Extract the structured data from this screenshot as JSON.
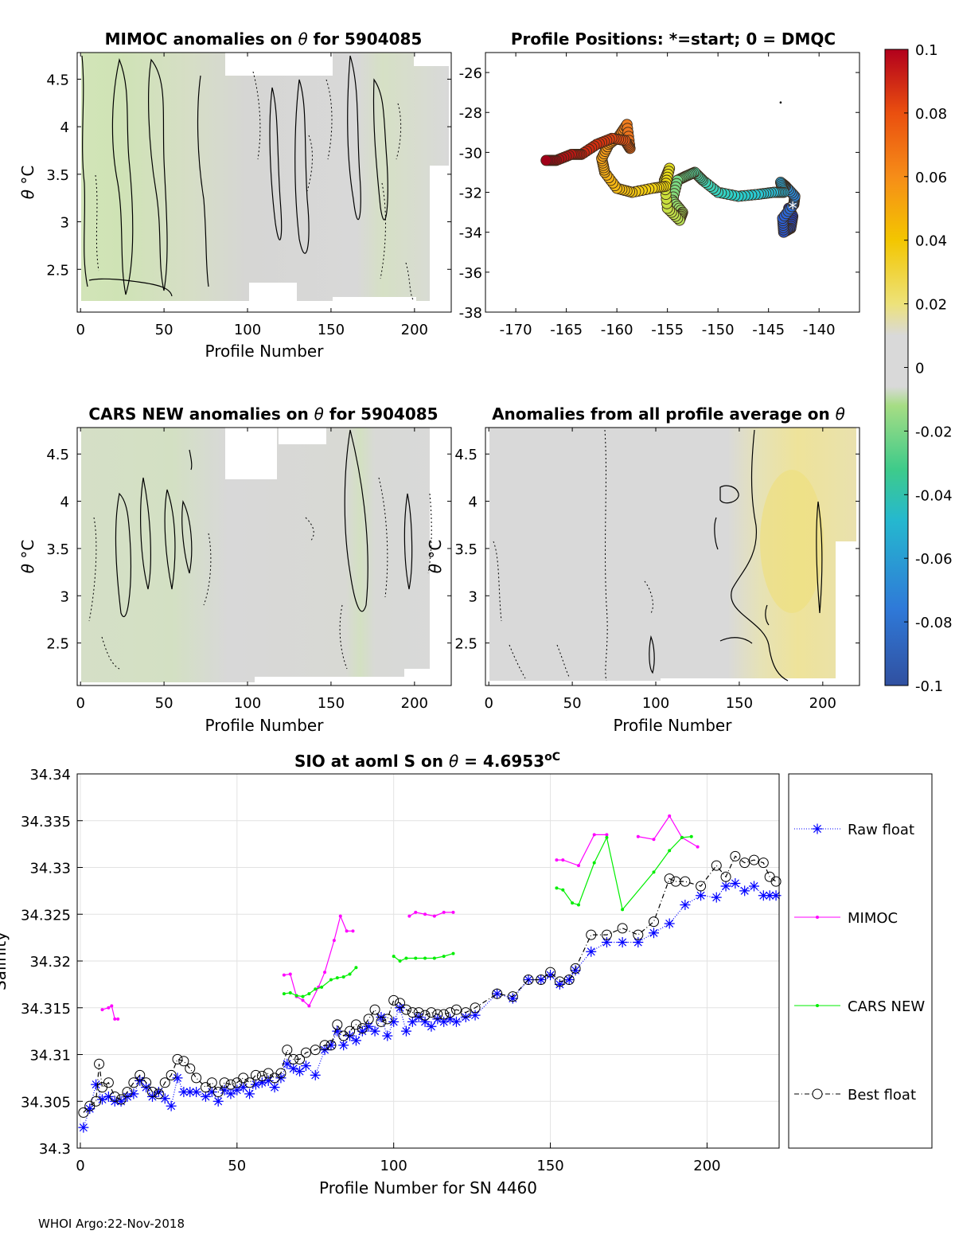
{
  "footer": "WHOI Argo:22-Nov-2018",
  "colorbar": {
    "ticks": [
      "0.1",
      "0.08",
      "0.06",
      "0.04",
      "0.02",
      "0",
      "-0.02",
      "-0.04",
      "-0.06",
      "-0.08",
      "-0.1"
    ],
    "range": [
      -0.1,
      0.1
    ],
    "colors": [
      "#3050a0",
      "#2f79d8",
      "#25b8cf",
      "#3ecb8a",
      "#a6dd84",
      "#d9d9d9",
      "#ede27a",
      "#f3c600",
      "#f68d18",
      "#ea4f0f",
      "#b2001c"
    ]
  },
  "chart_data": [
    {
      "id": "mimoc-anomalies",
      "type": "heatmap",
      "title_prefix": "MIMOC anomalies on ",
      "title_symbol": "θ",
      "title_suffix": "  for 5904085",
      "xlabel": "Profile Number",
      "ylabel_symbol": "θ",
      "ylabel_unit": " °C",
      "xlim": [
        -2,
        222
      ],
      "ylim": [
        2.05,
        4.78
      ],
      "xticks": [
        "0",
        "50",
        "100",
        "150",
        "200"
      ],
      "yticks": [
        "2.5",
        "3",
        "3.5",
        "4",
        "4.5"
      ]
    },
    {
      "id": "profile-positions",
      "type": "scatter",
      "title": "Profile Positions: *=start; 0 = DMQC",
      "xlim": [
        -173,
        -136
      ],
      "ylim": [
        -38,
        -25
      ],
      "xticks": [
        "-170",
        "-165",
        "-160",
        "-155",
        "-150",
        "-145",
        "-140"
      ],
      "yticks": [
        "-38",
        "-36",
        "-34",
        "-32",
        "-30",
        "-28",
        "-26"
      ],
      "track_lon": [
        -143.0,
        -142.6,
        -142.8,
        -143.5,
        -143.6,
        -142.5,
        -142.4,
        -143.3,
        -143.8,
        -143.5,
        -144.5,
        -146,
        -148,
        -150,
        -151.5,
        -152.3,
        -153.2,
        -154.0,
        -154.5,
        -153.5,
        -153.8,
        -155.0,
        -155.3,
        -154.8,
        -155.2,
        -156.5,
        -158.5,
        -160.0,
        -161.2,
        -161.5,
        -160.8,
        -159.8,
        -159.0,
        -158.7,
        -159.2,
        -160.5,
        -162.0,
        -163.5,
        -164.5,
        -166.0,
        -167.0
      ],
      "track_lat": [
        -32.8,
        -33.2,
        -33.8,
        -34.0,
        -33.3,
        -32.6,
        -32.2,
        -31.7,
        -31.5,
        -32.0,
        -32.0,
        -32.1,
        -32.2,
        -32.0,
        -31.4,
        -31.0,
        -31.2,
        -31.4,
        -32.4,
        -33.0,
        -33.4,
        -32.8,
        -31.4,
        -30.8,
        -31.7,
        -31.8,
        -32.0,
        -31.8,
        -31.0,
        -30.3,
        -29.6,
        -29.2,
        -28.6,
        -29.8,
        -29.4,
        -29.3,
        -29.6,
        -30.1,
        -30.1,
        -30.4,
        -30.4
      ],
      "start_marker": [
        -142.6,
        -32.8
      ],
      "stray_point": [
        -143.8,
        -27.5
      ]
    },
    {
      "id": "cars-new-anomalies",
      "type": "heatmap",
      "title_prefix": "CARS NEW anomalies on ",
      "title_symbol": "θ",
      "title_suffix": " for 5904085",
      "xlabel": "Profile Number",
      "ylabel_symbol": "θ",
      "ylabel_unit": " °C",
      "xlim": [
        -2,
        222
      ],
      "ylim": [
        2.05,
        4.78
      ],
      "xticks": [
        "0",
        "50",
        "100",
        "150",
        "200"
      ],
      "yticks": [
        "2.5",
        "3",
        "3.5",
        "4",
        "4.5"
      ]
    },
    {
      "id": "profile-average-anomalies",
      "type": "heatmap",
      "title_prefix": "Anomalies from all profile average on ",
      "title_symbol": "θ",
      "title_suffix": "",
      "xlabel": "Profile Number",
      "ylabel_symbol": "θ",
      "ylabel_unit": " °C",
      "xlim": [
        -2,
        222
      ],
      "ylim": [
        2.05,
        4.78
      ],
      "xticks": [
        "0",
        "50",
        "100",
        "150",
        "200"
      ],
      "yticks": [
        "2.5",
        "3",
        "3.5",
        "4",
        "4.5"
      ]
    },
    {
      "id": "salinity-series",
      "type": "line",
      "title_prefix": "SIO at aoml S on ",
      "title_symbol": "θ",
      "title_value": " = 4.6953",
      "title_unit": "oC",
      "xlabel": "Profile Number for SN 4460",
      "ylabel": "Salinity",
      "xlim": [
        -1,
        223
      ],
      "ylim": [
        34.3,
        34.34
      ],
      "xticks": [
        "0",
        "50",
        "100",
        "150",
        "200"
      ],
      "yticks": [
        "34.3",
        "34.305",
        "34.31",
        "34.315",
        "34.32",
        "34.325",
        "34.33",
        "34.335",
        "34.34"
      ],
      "legend": [
        "Raw float",
        "MIMOC",
        "CARS NEW",
        "Best float"
      ],
      "series": [
        {
          "name": "Raw float",
          "color": "#0000ff",
          "x": [
            1,
            3,
            5,
            7,
            9,
            11,
            13,
            15,
            17,
            19,
            21,
            23,
            25,
            27,
            29,
            31,
            33,
            35,
            37,
            40,
            42,
            44,
            46,
            48,
            50,
            52,
            54,
            56,
            58,
            60,
            62,
            64,
            66,
            68,
            70,
            72,
            75,
            78,
            80,
            82,
            84,
            86,
            88,
            90,
            92,
            94,
            96,
            98,
            100,
            102,
            104,
            106,
            108,
            110,
            112,
            114,
            116,
            118,
            120,
            123,
            126,
            133,
            138,
            143,
            147,
            150,
            153,
            156,
            158,
            163,
            168,
            173,
            178,
            183,
            188,
            193,
            198,
            203,
            206,
            209,
            212,
            215,
            218,
            220,
            222
          ],
          "values": [
            34.3022,
            34.3042,
            34.3068,
            34.3052,
            34.3055,
            34.305,
            34.305,
            34.3055,
            34.3058,
            34.3072,
            34.3065,
            34.3055,
            34.306,
            34.3053,
            34.3045,
            34.3075,
            34.306,
            34.306,
            34.306,
            34.3055,
            34.306,
            34.305,
            34.3062,
            34.3058,
            34.3062,
            34.3065,
            34.3058,
            34.3068,
            34.307,
            34.3072,
            34.3065,
            34.3075,
            34.309,
            34.3085,
            34.3082,
            34.3088,
            34.3078,
            34.3105,
            34.311,
            34.3125,
            34.311,
            34.312,
            34.3115,
            34.3125,
            34.313,
            34.3125,
            34.314,
            34.312,
            34.3135,
            34.315,
            34.3125,
            34.3135,
            34.314,
            34.3135,
            34.313,
            34.3138,
            34.3135,
            34.3138,
            34.3135,
            34.314,
            34.3142,
            34.3165,
            34.316,
            34.318,
            34.318,
            34.3185,
            34.3175,
            34.318,
            34.319,
            34.321,
            34.322,
            34.322,
            34.322,
            34.323,
            34.324,
            34.326,
            34.327,
            34.3268,
            34.328,
            34.3283,
            34.3275,
            34.328,
            34.327,
            34.327,
            34.327
          ]
        },
        {
          "name": "MIMOC",
          "color": "#ff00ff",
          "segments": [
            {
              "x": [
                7,
                9,
                10,
                11,
                12
              ],
              "values": [
                34.3148,
                34.315,
                34.3152,
                34.3138,
                34.3138
              ]
            },
            {
              "x": [
                65,
                67,
                69,
                71,
                73,
                76,
                78,
                81,
                83,
                85,
                87
              ],
              "values": [
                34.3185,
                34.3186,
                34.3162,
                34.3158,
                34.3152,
                34.3172,
                34.3188,
                34.3222,
                34.3248,
                34.3232,
                34.3232
              ]
            },
            {
              "x": [
                105,
                107,
                110,
                113,
                116,
                119
              ],
              "values": [
                34.3248,
                34.3252,
                34.325,
                34.3248,
                34.3252,
                34.3252
              ]
            },
            {
              "x": [
                152,
                154,
                159,
                164,
                168
              ],
              "values": [
                34.3308,
                34.3308,
                34.3302,
                34.3335,
                34.3335
              ]
            },
            {
              "x": [
                178,
                183,
                188,
                192,
                197
              ],
              "values": [
                34.3333,
                34.333,
                34.3355,
                34.3332,
                34.3322
              ]
            }
          ]
        },
        {
          "name": "CARS NEW",
          "color": "#00ee00",
          "segments": [
            {
              "x": [
                65,
                67,
                69,
                71,
                73,
                75,
                77,
                80,
                82,
                84,
                86,
                88
              ],
              "values": [
                34.3165,
                34.3166,
                34.3163,
                34.3162,
                34.3165,
                34.317,
                34.3172,
                34.318,
                34.3182,
                34.3183,
                34.3186,
                34.3193
              ]
            },
            {
              "x": [
                100,
                102,
                104,
                107,
                110,
                113,
                116,
                119
              ],
              "values": [
                34.3205,
                34.32,
                34.3203,
                34.3203,
                34.3203,
                34.3203,
                34.3205,
                34.3208
              ]
            },
            {
              "x": [
                152,
                154,
                157,
                159,
                164,
                168,
                173,
                183,
                188,
                192,
                195
              ],
              "values": [
                34.3278,
                34.3276,
                34.3262,
                34.326,
                34.3305,
                34.3332,
                34.3255,
                34.3295,
                34.3318,
                34.3332,
                34.3333
              ]
            }
          ]
        },
        {
          "name": "Best float",
          "color": "#000000",
          "x": [
            1,
            3,
            5,
            6,
            7,
            9,
            11,
            13,
            15,
            17,
            19,
            21,
            23,
            25,
            27,
            29,
            31,
            33,
            35,
            37,
            40,
            42,
            44,
            46,
            48,
            50,
            52,
            54,
            56,
            58,
            60,
            62,
            64,
            66,
            68,
            70,
            72,
            75,
            78,
            80,
            82,
            84,
            86,
            88,
            90,
            92,
            94,
            96,
            98,
            100,
            102,
            104,
            106,
            108,
            110,
            112,
            114,
            116,
            118,
            120,
            123,
            126,
            133,
            138,
            143,
            147,
            150,
            153,
            156,
            158,
            163,
            168,
            173,
            178,
            183,
            188,
            190,
            193,
            198,
            203,
            206,
            209,
            212,
            215,
            218,
            220,
            222
          ],
          "values": [
            34.3038,
            34.3045,
            34.305,
            34.309,
            34.3065,
            34.307,
            34.3055,
            34.3052,
            34.306,
            34.307,
            34.3078,
            34.307,
            34.306,
            34.3058,
            34.307,
            34.3078,
            34.3095,
            34.3093,
            34.3085,
            34.3075,
            34.3065,
            34.307,
            34.306,
            34.307,
            34.3068,
            34.307,
            34.3075,
            34.307,
            34.3078,
            34.3077,
            34.308,
            34.3075,
            34.308,
            34.3105,
            34.3095,
            34.3095,
            34.3102,
            34.3105,
            34.311,
            34.311,
            34.3132,
            34.312,
            34.3125,
            34.3132,
            34.3128,
            34.3138,
            34.3148,
            34.3135,
            34.3138,
            34.3158,
            34.3155,
            34.3148,
            34.3145,
            34.3145,
            34.3142,
            34.3145,
            34.3143,
            34.3143,
            34.3145,
            34.3148,
            34.3145,
            34.315,
            34.3165,
            34.3162,
            34.318,
            34.318,
            34.3188,
            34.3178,
            34.318,
            34.3192,
            34.3228,
            34.3228,
            34.3235,
            34.3228,
            34.3242,
            34.3288,
            34.3285,
            34.3285,
            34.328,
            34.3302,
            34.329,
            34.3312,
            34.3305,
            34.3308,
            34.3305,
            34.329,
            34.3285
          ]
        }
      ]
    }
  ]
}
